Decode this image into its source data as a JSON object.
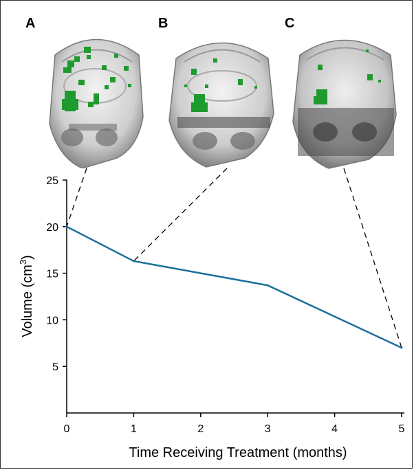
{
  "panels": [
    {
      "label": "A",
      "month": 0
    },
    {
      "label": "B",
      "month": 1
    },
    {
      "label": "C",
      "month": 5
    }
  ],
  "chart_data": {
    "type": "line",
    "title": "",
    "xlabel": "Time Receiving Treatment (months)",
    "ylabel": "Volume (cm",
    "ylabel_sup": "3",
    "ylabel_close": ")",
    "xlim": [
      0,
      5
    ],
    "ylim": [
      0,
      25
    ],
    "xticks": [
      0,
      1,
      2,
      3,
      4,
      5
    ],
    "yticks": [
      5,
      10,
      15,
      20,
      25
    ],
    "x": [
      0,
      1,
      3,
      5
    ],
    "y": [
      20,
      16.3,
      13.7,
      7.0
    ],
    "line_color": "#1b6f9a",
    "grid": false
  },
  "colors": {
    "lesion": "#1f9a2e",
    "skull_fill": "#d9d9d9"
  }
}
